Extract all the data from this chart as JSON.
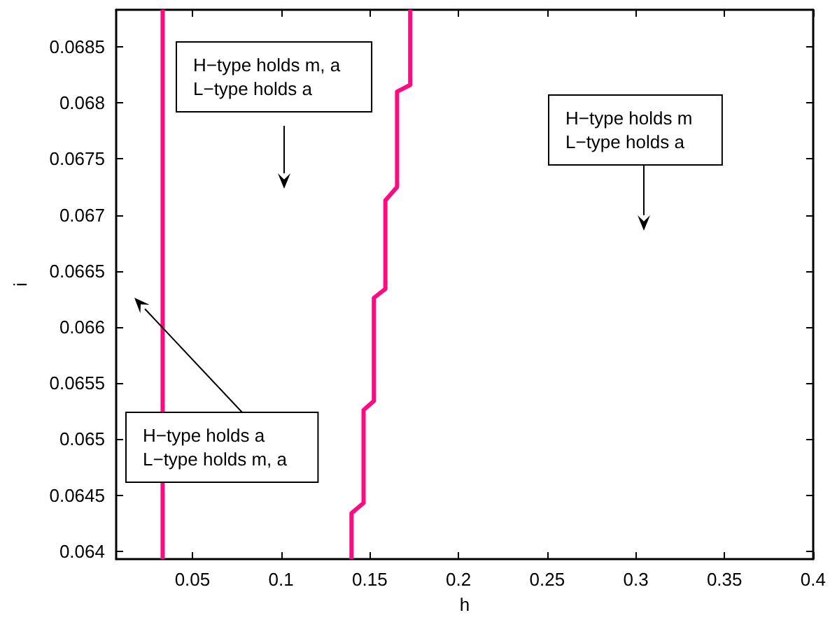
{
  "chart_data": {
    "type": "line",
    "xlabel": "h",
    "ylabel": "i",
    "xlim": [
      0.007,
      0.4
    ],
    "xticks": [
      0.05,
      0.1,
      0.15,
      0.2,
      0.25,
      0.3,
      0.35,
      0.4
    ],
    "ylim": [
      0.06393,
      0.06883
    ],
    "yticks": [
      0.064,
      0.0645,
      0.065,
      0.0655,
      0.066,
      0.0665,
      0.067,
      0.0675,
      0.068,
      0.0685
    ],
    "grid": false,
    "marker": "none",
    "line_style": "solid",
    "series": [
      {
        "color": "#ff0a80",
        "x": [
          0.0332,
          0.0332
        ],
        "values": [
          0.06393,
          0.06883
        ]
      },
      {
        "color": "#ff0a80",
        "x": [
          0.1397,
          0.1397,
          0.1465,
          0.1465,
          0.1523,
          0.1523,
          0.1588,
          0.1588,
          0.1654,
          0.1654,
          0.1728,
          0.1728
        ],
        "values": [
          0.06393,
          0.06434,
          0.06443,
          0.06526,
          0.06534,
          0.06626,
          0.06634,
          0.06713,
          0.06725,
          0.0681,
          0.06816,
          0.06883
        ]
      }
    ],
    "annotations": [
      "H−type holds m, a\nL−type holds a",
      "H−type holds m\nL−type holds a",
      "H−type holds a\nL−type holds m, a"
    ]
  }
}
